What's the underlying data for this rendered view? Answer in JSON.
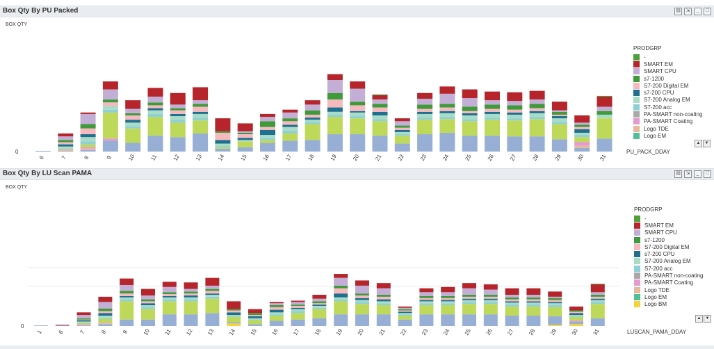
{
  "colors": {
    "-": "#4fa03a",
    "SMART EM": "#b5252b",
    "SMART CPU": "#c3afd6",
    "s7-1200": "#3f9a3c",
    "S7-200 Digital EM": "#f6b9bd",
    "s7-200 CPU": "#1f6f8f",
    "S7-200 Analog EM": "#a8dcc6",
    "S7-200 acc": "#8fd0d6",
    "PA-SMART non-coating": "#a9a9a9",
    "PA-SMART Coating": "#e79ad0",
    "Logo TDE": "#e8b89a",
    "Logo EM": "#4fbf98",
    "Logo BM": "#f5d33a",
    "base_lime": "#bed95a",
    "base_blue": "#97afd4"
  },
  "chart_data": [
    {
      "type": "bar",
      "title": "Box Qty By PU Packed",
      "ylabel": "BOX QTY",
      "xlabel": "PU_PACK_DDAY",
      "y_tick": "0",
      "legend_title": "PRODGRP",
      "legend": [
        "-",
        "SMART EM",
        "SMART CPU",
        "s7-1200",
        "S7-200 Digital EM",
        "s7-200 CPU",
        "S7-200 Analog EM",
        "S7-200 acc",
        "PA-SMART non-coating",
        "PA-SMART Coating",
        "Logo TDE",
        "Logo EM"
      ],
      "categories": [
        "6",
        "7",
        "8",
        "9",
        "10",
        "11",
        "12",
        "13",
        "14",
        "15",
        "16",
        "17",
        "18",
        "19",
        "20",
        "21",
        "22",
        "23",
        "24",
        "25",
        "26",
        "27",
        "28",
        "29",
        "30",
        "31"
      ],
      "series": [
        {
          "name": "Logo EM",
          "values": [
            1,
            1,
            2,
            15,
            12,
            22,
            20,
            25,
            4,
            6,
            12,
            15,
            16,
            24,
            24,
            22,
            11,
            24,
            26,
            22,
            22,
            21,
            21,
            17,
            5,
            18
          ]
        },
        {
          "name": "Logo TDE",
          "values": [
            0,
            1,
            2,
            0,
            0,
            0,
            0,
            0,
            0,
            0,
            0,
            0,
            0,
            0,
            0,
            0,
            0,
            0,
            0,
            0,
            0,
            0,
            0,
            0,
            3,
            0
          ]
        },
        {
          "name": "PA-SMART Coating",
          "values": [
            0,
            1,
            2,
            3,
            0,
            0,
            0,
            0,
            0,
            0,
            0,
            0,
            0,
            0,
            0,
            0,
            0,
            0,
            0,
            0,
            0,
            0,
            0,
            0,
            5,
            0
          ]
        },
        {
          "name": "PA-SMART non-coating",
          "values": [
            0,
            1,
            4,
            36,
            20,
            26,
            20,
            18,
            2,
            8,
            4,
            10,
            22,
            24,
            22,
            20,
            11,
            20,
            19,
            20,
            22,
            22,
            24,
            21,
            7,
            28
          ]
        },
        {
          "name": "S7-200 acc",
          "values": [
            0,
            1,
            4,
            4,
            3,
            4,
            4,
            4,
            2,
            0,
            3,
            4,
            3,
            3,
            3,
            3,
            2,
            3,
            3,
            3,
            3,
            3,
            3,
            3,
            3,
            0
          ]
        },
        {
          "name": "S7-200 Analog EM",
          "values": [
            0,
            2,
            6,
            5,
            5,
            5,
            5,
            5,
            3,
            2,
            4,
            5,
            3,
            4,
            5,
            5,
            3,
            5,
            5,
            5,
            5,
            5,
            5,
            5,
            3,
            5
          ]
        },
        {
          "name": "s7-200 CPU",
          "values": [
            0,
            3,
            4,
            0,
            4,
            3,
            3,
            3,
            5,
            3,
            7,
            3,
            3,
            6,
            2,
            5,
            3,
            3,
            3,
            3,
            3,
            3,
            3,
            3,
            5,
            0
          ]
        },
        {
          "name": "S7-200 Digital EM",
          "values": [
            0,
            3,
            8,
            5,
            6,
            4,
            5,
            7,
            10,
            5,
            4,
            5,
            4,
            11,
            8,
            6,
            3,
            4,
            5,
            3,
            4,
            4,
            4,
            2,
            3,
            0
          ]
        },
        {
          "name": "s7-1200",
          "values": [
            0,
            3,
            6,
            4,
            3,
            4,
            3,
            4,
            2,
            2,
            8,
            4,
            6,
            9,
            5,
            5,
            3,
            6,
            5,
            6,
            6,
            6,
            6,
            4,
            3,
            5
          ]
        },
        {
          "name": "SMART CPU",
          "values": [
            0,
            5,
            14,
            14,
            6,
            8,
            5,
            5,
            0,
            2,
            6,
            8,
            8,
            18,
            18,
            6,
            6,
            8,
            14,
            12,
            6,
            6,
            6,
            2,
            3,
            6
          ]
        },
        {
          "name": "SMART EM",
          "values": [
            0,
            4,
            2,
            11,
            12,
            12,
            16,
            18,
            18,
            11,
            4,
            4,
            6,
            8,
            10,
            6,
            4,
            8,
            10,
            12,
            12,
            12,
            12,
            12,
            10,
            14
          ]
        },
        {
          "name": "-",
          "values": [
            0,
            0,
            0,
            0,
            0,
            0,
            0,
            0,
            0,
            0,
            0,
            0,
            0,
            0,
            0,
            1,
            0,
            0,
            0,
            0,
            0,
            0,
            0,
            0,
            0,
            1
          ]
        }
      ]
    },
    {
      "type": "bar",
      "title": "Box Qty By LU Scan PAMA",
      "ylabel": "BOX QTY",
      "xlabel": "LUSCAN_PAMA_DDAY",
      "y_tick": "0",
      "legend_title": "PRODGRP",
      "legend": [
        "-",
        "SMART EM",
        "SMART CPU",
        "s7-1200",
        "S7-200 Digital EM",
        "s7-200 CPU",
        "S7-200 Analog EM",
        "S7-200 acc",
        "PA-SMART non-coating",
        "PA-SMART Coating",
        "Logo TDE",
        "Logo EM",
        "Logo BM"
      ],
      "categories": [
        "1",
        "6",
        "7",
        "8",
        "9",
        "10",
        "11",
        "12",
        "13",
        "14",
        "15",
        "16",
        "17",
        "18",
        "19",
        "20",
        "21",
        "22",
        "23",
        "24",
        "25",
        "26",
        "27",
        "28",
        "29",
        "30",
        "31"
      ],
      "series": [
        {
          "name": "Logo BM",
          "values": [
            0,
            0,
            0,
            0,
            0,
            0,
            0,
            0,
            0,
            4,
            0,
            0,
            0,
            0,
            0,
            0,
            0,
            0,
            0,
            0,
            0,
            0,
            0,
            0,
            2,
            3,
            0
          ]
        },
        {
          "name": "Logo EM",
          "values": [
            1,
            1,
            1,
            3,
            10,
            10,
            18,
            18,
            20,
            2,
            3,
            8,
            10,
            12,
            18,
            18,
            18,
            10,
            18,
            18,
            18,
            18,
            16,
            16,
            13,
            4,
            12
          ]
        },
        {
          "name": "Logo TDE",
          "values": [
            0,
            0,
            1,
            1,
            0,
            0,
            0,
            0,
            0,
            0,
            0,
            0,
            0,
            0,
            0,
            0,
            0,
            0,
            0,
            0,
            0,
            0,
            0,
            0,
            0,
            1,
            0
          ]
        },
        {
          "name": "PA-SMART Coating",
          "values": [
            0,
            0,
            1,
            1,
            0,
            0,
            0,
            0,
            0,
            0,
            0,
            0,
            0,
            0,
            0,
            0,
            0,
            0,
            0,
            0,
            0,
            0,
            0,
            0,
            0,
            1,
            0
          ]
        },
        {
          "name": "PA-SMART non-coating",
          "values": [
            0,
            0,
            2,
            6,
            28,
            16,
            20,
            20,
            22,
            8,
            6,
            8,
            10,
            14,
            20,
            16,
            14,
            6,
            14,
            14,
            16,
            16,
            14,
            14,
            14,
            5,
            22
          ]
        },
        {
          "name": "S7-200 acc",
          "values": [
            0,
            0,
            1,
            2,
            3,
            3,
            3,
            3,
            3,
            1,
            1,
            2,
            3,
            2,
            3,
            3,
            3,
            2,
            3,
            3,
            3,
            3,
            3,
            3,
            3,
            1,
            3
          ]
        },
        {
          "name": "S7-200 Analog EM",
          "values": [
            0,
            0,
            1,
            3,
            3,
            3,
            3,
            3,
            3,
            2,
            2,
            3,
            3,
            3,
            3,
            3,
            3,
            2,
            3,
            3,
            3,
            3,
            3,
            3,
            3,
            2,
            3
          ]
        },
        {
          "name": "s7-200 CPU",
          "values": [
            0,
            0,
            2,
            4,
            2,
            3,
            2,
            3,
            2,
            4,
            3,
            4,
            2,
            2,
            6,
            3,
            3,
            2,
            2,
            2,
            2,
            2,
            2,
            2,
            2,
            3,
            2
          ]
        },
        {
          "name": "S7-200 Digital EM",
          "values": [
            0,
            0,
            1,
            3,
            4,
            3,
            3,
            3,
            4,
            3,
            2,
            4,
            3,
            2,
            8,
            4,
            4,
            2,
            3,
            3,
            3,
            3,
            3,
            3,
            3,
            2,
            3
          ]
        },
        {
          "name": "s7-1200",
          "values": [
            0,
            0,
            2,
            4,
            4,
            3,
            3,
            3,
            3,
            2,
            3,
            3,
            2,
            3,
            4,
            3,
            3,
            2,
            3,
            3,
            3,
            3,
            3,
            3,
            3,
            2,
            3
          ]
        },
        {
          "name": "SMART CPU",
          "values": [
            0,
            0,
            5,
            10,
            9,
            6,
            8,
            4,
            5,
            0,
            0,
            3,
            4,
            4,
            12,
            12,
            10,
            2,
            6,
            6,
            10,
            8,
            4,
            4,
            2,
            0,
            4
          ]
        },
        {
          "name": "SMART EM",
          "values": [
            0,
            1,
            4,
            8,
            10,
            10,
            8,
            10,
            12,
            12,
            6,
            2,
            2,
            6,
            6,
            8,
            8,
            2,
            6,
            8,
            8,
            8,
            10,
            10,
            8,
            6,
            12
          ]
        },
        {
          "name": "-",
          "values": [
            0,
            0,
            0,
            0,
            0,
            0,
            0,
            0,
            0,
            0,
            0,
            0,
            0,
            0,
            0,
            0,
            0,
            0,
            0,
            0,
            0,
            0,
            0,
            0,
            0,
            0,
            1
          ]
        }
      ]
    }
  ],
  "panels": [
    {
      "title": "Box Qty By PU Packed",
      "ylabel": "BOX QTY",
      "xlabel": "PU_PACK_DDAY",
      "legend_title": "PRODGRP",
      "y_tick": "0"
    },
    {
      "title": "Box Qty By LU Scan PAMA",
      "ylabel": "BOX QTY",
      "xlabel": "LUSCAN_PAMA_DDAY",
      "legend_title": "PRODGRP",
      "y_tick": "0"
    }
  ]
}
